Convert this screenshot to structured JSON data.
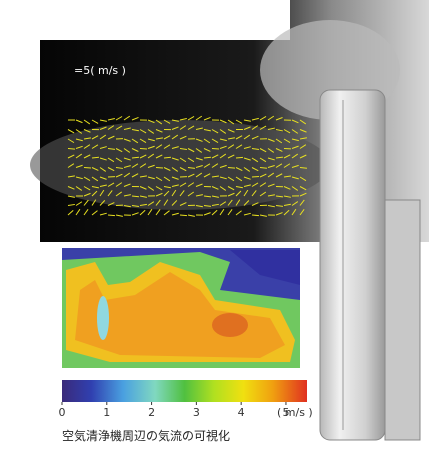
{
  "figure": {
    "vector_scale_label": "=5( m/s )",
    "colorbar": {
      "lim": [
        0,
        5.47
      ],
      "ticks": [
        0,
        1,
        2,
        3,
        4,
        5
      ],
      "unit": "( m/s )"
    },
    "caption": "空気清浄機周辺の気流の可視化"
  }
}
